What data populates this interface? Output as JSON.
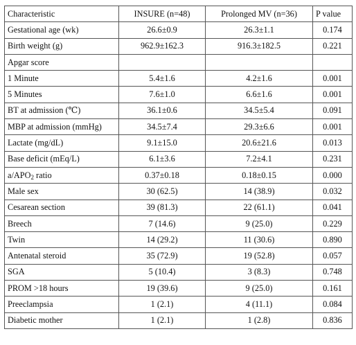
{
  "table": {
    "headers": [
      "Characteristic",
      "INSURE (n=48)",
      "Prolonged MV (n=36)",
      "P value"
    ],
    "rows": [
      {
        "label": "Gestational age (wk)",
        "insure": "26.6±0.9",
        "mv": "26.3±1.1",
        "p": "0.174"
      },
      {
        "label": "Birth weight (g)",
        "insure": "962.9±162.3",
        "mv": "916.3±182.5",
        "p": "0.221"
      },
      {
        "label": "Apgar score",
        "insure": "",
        "mv": "",
        "p": ""
      },
      {
        "label": "1 Minute",
        "insure": "5.4±1.6",
        "mv": "4.2±1.6",
        "p": "0.001"
      },
      {
        "label": "5 Minutes",
        "insure": "7.6±1.0",
        "mv": "6.6±1.6",
        "p": "0.001"
      },
      {
        "label": "BT at admission (℃)",
        "insure": "36.1±0.6",
        "mv": "34.5±5.4",
        "p": "0.091"
      },
      {
        "label": "MBP at admission (mmHg)",
        "insure": "34.5±7.4",
        "mv": "29.3±6.6",
        "p": "0.001"
      },
      {
        "label": "Lactate (mg/dL)",
        "insure": "9.1±15.0",
        "mv": "20.6±21.6",
        "p": "0.013"
      },
      {
        "label": "Base deficit (mEq/L)",
        "insure": "6.1±3.6",
        "mv": "7.2±4.1",
        "p": "0.231"
      },
      {
        "label": "a/APO",
        "label_sub": "2",
        "label_suffix": " ratio",
        "insure": "0.37±0.18",
        "mv": "0.18±0.15",
        "p": "0.000"
      },
      {
        "label": "Male sex",
        "insure": "30 (62.5)",
        "mv": "14 (38.9)",
        "p": "0.032"
      },
      {
        "label": "Cesarean section",
        "insure": "39 (81.3)",
        "mv": "22 (61.1)",
        "p": "0.041"
      },
      {
        "label": "Breech",
        "insure": "7 (14.6)",
        "mv": "9 (25.0)",
        "p": "0.229"
      },
      {
        "label": "Twin",
        "insure": "14 (29.2)",
        "mv": "11 (30.6)",
        "p": "0.890"
      },
      {
        "label": "Antenatal steroid",
        "insure": "35 (72.9)",
        "mv": "19 (52.8)",
        "p": "0.057"
      },
      {
        "label": "SGA",
        "insure": "5 (10.4)",
        "mv": "3 (8.3)",
        "p": "0.748"
      },
      {
        "label": "PROM >18 hours",
        "insure": "19 (39.6)",
        "mv": "9 (25.0)",
        "p": "0.161"
      },
      {
        "label": "Preeclampsia",
        "insure": "1 (2.1)",
        "mv": "4 (11.1)",
        "p": "0.084"
      },
      {
        "label": "Diabetic mother",
        "insure": "1 (2.1)",
        "mv": "1 (2.8)",
        "p": "0.836"
      }
    ]
  }
}
